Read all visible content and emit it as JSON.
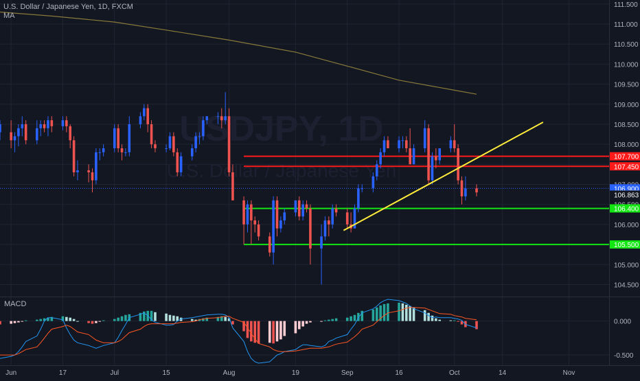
{
  "chart_data": {
    "type": "candlestick",
    "symbol_line": "U.S. Dollar / Japanese Yen, 1D, FXCM",
    "indicator_label": "MA",
    "watermark_symbol": "USDJPY, 1D",
    "watermark_name": "U.S. Dollar / Japanese Yen",
    "macd_label": "MACD",
    "colors": {
      "background": "#131722",
      "grid": "#1f2433",
      "up": "#2962ff",
      "down": "#ef5350",
      "ma": "#8a7a3a",
      "trendline": "#ffeb3b",
      "resistance": "#ff1a1a",
      "support": "#13e613",
      "axis_text": "#b2b5be",
      "macd_line": "#2196f3",
      "signal_line": "#ff5722",
      "hist_up_strong": "#26a69a",
      "hist_up_weak": "#b2dfdb",
      "hist_down_strong": "#ef5350",
      "hist_down_weak": "#ffcdd2"
    },
    "price_axis": {
      "ylim": [
        104.2,
        111.6
      ],
      "ticks": [
        "111.500",
        "111.000",
        "110.500",
        "110.000",
        "109.500",
        "109.000",
        "108.500",
        "108.000",
        "107.500",
        "107.000",
        "106.500",
        "106.000",
        "105.500",
        "105.000",
        "104.500"
      ]
    },
    "x_axis": {
      "ticks": [
        {
          "label": "Jun",
          "date": "2019-06-03"
        },
        {
          "label": "17",
          "date": "2019-06-17"
        },
        {
          "label": "Jul",
          "date": "2019-07-01"
        },
        {
          "label": "15",
          "date": "2019-07-15"
        },
        {
          "label": "Aug",
          "date": "2019-08-01"
        },
        {
          "label": "19",
          "date": "2019-08-19"
        },
        {
          "label": "Sep",
          "date": "2019-09-02"
        },
        {
          "label": "16",
          "date": "2019-09-16"
        },
        {
          "label": "Oct",
          "date": "2019-10-01"
        },
        {
          "label": "14",
          "date": "2019-10-14"
        },
        {
          "label": "Nov",
          "date": "2019-11-01"
        }
      ]
    },
    "candles": [
      {
        "d": "2019-05-31",
        "o": 108.3,
        "h": 108.6,
        "l": 108.1,
        "c": 108.5
      },
      {
        "d": "2019-06-03",
        "o": 108.3,
        "h": 108.6,
        "l": 107.9,
        "c": 108.1
      },
      {
        "d": "2019-06-04",
        "o": 108.1,
        "h": 108.3,
        "l": 107.8,
        "c": 108.2
      },
      {
        "d": "2019-06-05",
        "o": 108.2,
        "h": 108.5,
        "l": 107.95,
        "c": 108.4
      },
      {
        "d": "2019-06-06",
        "o": 108.4,
        "h": 108.7,
        "l": 108.2,
        "c": 108.5
      },
      {
        "d": "2019-06-07",
        "o": 108.5,
        "h": 108.6,
        "l": 108.0,
        "c": 108.1
      },
      {
        "d": "2019-06-10",
        "o": 108.1,
        "h": 108.6,
        "l": 108.0,
        "c": 108.4
      },
      {
        "d": "2019-06-11",
        "o": 108.4,
        "h": 108.6,
        "l": 108.2,
        "c": 108.5
      },
      {
        "d": "2019-06-12",
        "o": 108.5,
        "h": 108.6,
        "l": 108.3,
        "c": 108.4
      },
      {
        "d": "2019-06-13",
        "o": 108.4,
        "h": 108.7,
        "l": 108.2,
        "c": 108.6
      },
      {
        "d": "2019-06-14",
        "o": 108.6,
        "h": 108.7,
        "l": 108.3,
        "c": 108.45
      },
      {
        "d": "2019-06-17",
        "o": 108.45,
        "h": 108.7,
        "l": 108.35,
        "c": 108.6
      },
      {
        "d": "2019-06-18",
        "o": 108.6,
        "h": 108.7,
        "l": 108.3,
        "c": 108.45
      },
      {
        "d": "2019-06-19",
        "o": 108.45,
        "h": 108.5,
        "l": 107.9,
        "c": 108.1
      },
      {
        "d": "2019-06-20",
        "o": 108.1,
        "h": 108.2,
        "l": 107.2,
        "c": 107.3
      },
      {
        "d": "2019-06-21",
        "o": 107.3,
        "h": 107.6,
        "l": 107.1,
        "c": 107.35
      },
      {
        "d": "2019-06-24",
        "o": 107.35,
        "h": 107.5,
        "l": 107.05,
        "c": 107.3
      },
      {
        "d": "2019-06-25",
        "o": 107.3,
        "h": 107.4,
        "l": 106.8,
        "c": 107.1
      },
      {
        "d": "2019-06-26",
        "o": 107.1,
        "h": 107.9,
        "l": 107.0,
        "c": 107.8
      },
      {
        "d": "2019-06-27",
        "o": 107.8,
        "h": 107.9,
        "l": 107.6,
        "c": 107.8
      },
      {
        "d": "2019-06-28",
        "o": 107.8,
        "h": 108.0,
        "l": 107.7,
        "c": 107.9
      },
      {
        "d": "2019-07-01",
        "o": 107.9,
        "h": 108.5,
        "l": 107.8,
        "c": 108.4
      },
      {
        "d": "2019-07-02",
        "o": 108.4,
        "h": 108.5,
        "l": 107.8,
        "c": 107.9
      },
      {
        "d": "2019-07-03",
        "o": 107.9,
        "h": 108.0,
        "l": 107.6,
        "c": 107.8
      },
      {
        "d": "2019-07-04",
        "o": 107.8,
        "h": 107.9,
        "l": 107.7,
        "c": 107.8
      },
      {
        "d": "2019-07-05",
        "o": 107.8,
        "h": 108.7,
        "l": 107.7,
        "c": 108.5
      },
      {
        "d": "2019-07-08",
        "o": 108.5,
        "h": 108.8,
        "l": 108.4,
        "c": 108.7
      },
      {
        "d": "2019-07-09",
        "o": 108.7,
        "h": 109.0,
        "l": 108.6,
        "c": 108.9
      },
      {
        "d": "2019-07-10",
        "o": 108.9,
        "h": 109.0,
        "l": 108.3,
        "c": 108.5
      },
      {
        "d": "2019-07-11",
        "o": 108.5,
        "h": 108.6,
        "l": 107.9,
        "c": 108.0
      },
      {
        "d": "2019-07-12",
        "o": 108.0,
        "h": 108.1,
        "l": 107.8,
        "c": 107.9
      },
      {
        "d": "2019-07-15",
        "o": 107.9,
        "h": 108.0,
        "l": 107.8,
        "c": 107.9
      },
      {
        "d": "2019-07-16",
        "o": 107.9,
        "h": 108.3,
        "l": 107.85,
        "c": 108.2
      },
      {
        "d": "2019-07-17",
        "o": 108.2,
        "h": 108.3,
        "l": 107.7,
        "c": 107.8
      },
      {
        "d": "2019-07-18",
        "o": 107.8,
        "h": 107.9,
        "l": 107.2,
        "c": 107.3
      },
      {
        "d": "2019-07-19",
        "o": 107.3,
        "h": 107.8,
        "l": 107.2,
        "c": 107.7
      },
      {
        "d": "2019-07-22",
        "o": 107.7,
        "h": 108.0,
        "l": 107.6,
        "c": 107.9
      },
      {
        "d": "2019-07-23",
        "o": 107.9,
        "h": 108.3,
        "l": 107.8,
        "c": 108.2
      },
      {
        "d": "2019-07-24",
        "o": 108.2,
        "h": 108.3,
        "l": 108.0,
        "c": 108.2
      },
      {
        "d": "2019-07-25",
        "o": 108.2,
        "h": 108.7,
        "l": 108.1,
        "c": 108.6
      },
      {
        "d": "2019-07-26",
        "o": 108.6,
        "h": 108.7,
        "l": 108.5,
        "c": 108.7
      },
      {
        "d": "2019-07-29",
        "o": 108.7,
        "h": 108.8,
        "l": 108.5,
        "c": 108.7
      },
      {
        "d": "2019-07-30",
        "o": 108.7,
        "h": 108.9,
        "l": 108.4,
        "c": 108.6
      },
      {
        "d": "2019-07-31",
        "o": 108.6,
        "h": 109.3,
        "l": 108.5,
        "c": 108.7
      },
      {
        "d": "2019-08-01",
        "o": 108.7,
        "h": 108.9,
        "l": 107.2,
        "c": 107.3
      },
      {
        "d": "2019-08-02",
        "o": 107.3,
        "h": 107.5,
        "l": 106.6,
        "c": 106.6
      },
      {
        "d": "2019-08-05",
        "o": 106.6,
        "h": 106.7,
        "l": 105.5,
        "c": 106.0
      },
      {
        "d": "2019-08-06",
        "o": 106.0,
        "h": 106.6,
        "l": 105.8,
        "c": 106.5
      },
      {
        "d": "2019-08-07",
        "o": 106.5,
        "h": 106.6,
        "l": 105.5,
        "c": 106.1
      },
      {
        "d": "2019-08-08",
        "o": 106.1,
        "h": 106.2,
        "l": 105.8,
        "c": 106.0
      },
      {
        "d": "2019-08-09",
        "o": 106.0,
        "h": 106.1,
        "l": 105.6,
        "c": 105.7
      },
      {
        "d": "2019-08-12",
        "o": 105.7,
        "h": 105.8,
        "l": 105.2,
        "c": 105.3
      },
      {
        "d": "2019-08-13",
        "o": 105.3,
        "h": 106.7,
        "l": 105.0,
        "c": 106.6
      },
      {
        "d": "2019-08-14",
        "o": 106.6,
        "h": 106.7,
        "l": 105.7,
        "c": 105.9
      },
      {
        "d": "2019-08-15",
        "o": 105.9,
        "h": 106.2,
        "l": 105.8,
        "c": 106.1
      },
      {
        "d": "2019-08-16",
        "o": 106.1,
        "h": 106.4,
        "l": 106.0,
        "c": 106.3
      },
      {
        "d": "2019-08-19",
        "o": 106.3,
        "h": 106.6,
        "l": 106.2,
        "c": 106.6
      },
      {
        "d": "2019-08-20",
        "o": 106.6,
        "h": 106.7,
        "l": 106.1,
        "c": 106.2
      },
      {
        "d": "2019-08-21",
        "o": 106.2,
        "h": 106.6,
        "l": 106.1,
        "c": 106.5
      },
      {
        "d": "2019-08-22",
        "o": 106.5,
        "h": 106.6,
        "l": 106.3,
        "c": 106.4
      },
      {
        "d": "2019-08-23",
        "o": 106.4,
        "h": 106.5,
        "l": 105.0,
        "c": 105.4
      },
      {
        "d": "2019-08-26",
        "o": 105.4,
        "h": 106.0,
        "l": 104.5,
        "c": 105.7
      },
      {
        "d": "2019-08-27",
        "o": 105.7,
        "h": 106.2,
        "l": 105.6,
        "c": 106.1
      },
      {
        "d": "2019-08-28",
        "o": 106.1,
        "h": 106.2,
        "l": 105.7,
        "c": 106.0
      },
      {
        "d": "2019-08-29",
        "o": 106.0,
        "h": 106.5,
        "l": 105.9,
        "c": 106.4
      },
      {
        "d": "2019-08-30",
        "o": 106.4,
        "h": 106.5,
        "l": 106.2,
        "c": 106.3
      },
      {
        "d": "2019-09-02",
        "o": 106.3,
        "h": 106.4,
        "l": 105.9,
        "c": 106.0
      },
      {
        "d": "2019-09-03",
        "o": 106.0,
        "h": 106.3,
        "l": 105.8,
        "c": 105.9
      },
      {
        "d": "2019-09-04",
        "o": 105.9,
        "h": 106.5,
        "l": 105.9,
        "c": 106.4
      },
      {
        "d": "2019-09-05",
        "o": 106.4,
        "h": 107.0,
        "l": 106.3,
        "c": 106.9
      },
      {
        "d": "2019-09-06",
        "o": 106.9,
        "h": 107.0,
        "l": 106.8,
        "c": 106.9
      },
      {
        "d": "2019-09-09",
        "o": 106.9,
        "h": 107.3,
        "l": 106.8,
        "c": 107.2
      },
      {
        "d": "2019-09-10",
        "o": 107.2,
        "h": 107.6,
        "l": 107.1,
        "c": 107.5
      },
      {
        "d": "2019-09-11",
        "o": 107.5,
        "h": 107.9,
        "l": 107.4,
        "c": 107.8
      },
      {
        "d": "2019-09-12",
        "o": 107.8,
        "h": 108.2,
        "l": 107.7,
        "c": 108.1
      },
      {
        "d": "2019-09-13",
        "o": 108.1,
        "h": 108.2,
        "l": 107.9,
        "c": 107.9
      },
      {
        "d": "2019-09-16",
        "o": 107.9,
        "h": 108.2,
        "l": 107.8,
        "c": 108.1
      },
      {
        "d": "2019-09-17",
        "o": 108.1,
        "h": 108.2,
        "l": 107.9,
        "c": 108.1
      },
      {
        "d": "2019-09-18",
        "o": 108.1,
        "h": 108.2,
        "l": 107.8,
        "c": 107.9
      },
      {
        "d": "2019-09-19",
        "o": 107.9,
        "h": 108.4,
        "l": 107.5,
        "c": 107.5
      },
      {
        "d": "2019-09-20",
        "o": 107.5,
        "h": 108.0,
        "l": 107.5,
        "c": 107.9
      },
      {
        "d": "2019-09-23",
        "o": 107.9,
        "h": 108.6,
        "l": 107.8,
        "c": 108.4
      },
      {
        "d": "2019-09-24",
        "o": 108.4,
        "h": 108.5,
        "l": 107.0,
        "c": 107.1
      },
      {
        "d": "2019-09-25",
        "o": 107.1,
        "h": 107.8,
        "l": 107.0,
        "c": 107.7
      },
      {
        "d": "2019-09-26",
        "o": 107.7,
        "h": 107.9,
        "l": 107.4,
        "c": 107.6
      },
      {
        "d": "2019-09-27",
        "o": 107.6,
        "h": 107.9,
        "l": 107.5,
        "c": 107.9
      },
      {
        "d": "2019-09-30",
        "o": 107.9,
        "h": 108.2,
        "l": 107.8,
        "c": 108.1
      },
      {
        "d": "2019-10-01",
        "o": 108.1,
        "h": 108.5,
        "l": 107.8,
        "c": 107.9
      },
      {
        "d": "2019-10-02",
        "o": 107.9,
        "h": 108.0,
        "l": 107.0,
        "c": 107.1
      },
      {
        "d": "2019-10-03",
        "o": 107.1,
        "h": 107.2,
        "l": 106.5,
        "c": 106.7
      },
      {
        "d": "2019-10-04",
        "o": 106.7,
        "h": 107.2,
        "l": 106.6,
        "c": 106.9
      },
      {
        "d": "2019-10-07",
        "o": 106.9,
        "h": 107.0,
        "l": 106.7,
        "c": 106.8
      }
    ],
    "ma": [
      {
        "d": "2019-05-31",
        "v": 111.3
      },
      {
        "d": "2019-06-14",
        "v": 111.2
      },
      {
        "d": "2019-07-01",
        "v": 111.05
      },
      {
        "d": "2019-07-15",
        "v": 110.85
      },
      {
        "d": "2019-08-01",
        "v": 110.6
      },
      {
        "d": "2019-08-19",
        "v": 110.3
      },
      {
        "d": "2019-09-02",
        "v": 109.95
      },
      {
        "d": "2019-09-16",
        "v": 109.6
      },
      {
        "d": "2019-10-01",
        "v": 109.35
      },
      {
        "d": "2019-10-07",
        "v": 109.25
      }
    ],
    "horizontal_levels": [
      {
        "price": 107.7,
        "label": "107.700",
        "color": "#ff1a1a",
        "from": "2019-08-05"
      },
      {
        "price": 107.45,
        "label": "107.450",
        "color": "#ff1a1a",
        "from": "2019-08-05"
      },
      {
        "price": 106.4,
        "label": "106.400",
        "color": "#13e613",
        "from": "2019-08-05"
      },
      {
        "price": 105.5,
        "label": "105.500",
        "color": "#13e613",
        "from": "2019-08-05"
      }
    ],
    "price_labels": [
      {
        "price": 106.9,
        "label": "106.900",
        "color": "#2962ff"
      },
      {
        "price": 106.863,
        "label": "106.863",
        "color": "#131722"
      }
    ],
    "trendline": {
      "start": {
        "d": "2019-09-01",
        "p": 105.85
      },
      "end": {
        "d": "2019-10-25",
        "p": 108.55
      }
    },
    "macd": {
      "ylim": [
        -0.65,
        0.35
      ],
      "ticks": [
        "0.000",
        "-0.500"
      ],
      "histogram": [
        -0.05,
        -0.04,
        -0.03,
        -0.02,
        -0.01,
        0.01,
        0.02,
        0.03,
        0.04,
        0.05,
        0.06,
        0.07,
        0.06,
        0.05,
        0.03,
        0.0,
        -0.03,
        -0.04,
        -0.03,
        -0.01,
        0.01,
        0.03,
        0.05,
        0.07,
        0.09,
        0.1,
        0.12,
        0.14,
        0.15,
        0.15,
        0.13,
        0.11,
        0.09,
        0.08,
        0.07,
        0.05,
        0.03,
        0.02,
        0.03,
        0.04,
        0.05,
        0.06,
        0.07,
        0.06,
        0.04,
        -0.05,
        -0.15,
        -0.25,
        -0.3,
        -0.32,
        -0.33,
        -0.32,
        -0.33,
        -0.3,
        -0.27,
        -0.22,
        -0.18,
        -0.12,
        -0.08,
        -0.04,
        -0.02,
        -0.01,
        0.01,
        0.02,
        0.03,
        0.04,
        0.05,
        0.07,
        0.09,
        0.12,
        0.15,
        0.17,
        0.2,
        0.23,
        0.25,
        0.26,
        0.27,
        0.26,
        0.24,
        0.22,
        0.2,
        0.16,
        0.12,
        0.08,
        0.04,
        0.02,
        0.01,
        0.01,
        -0.01,
        -0.05,
        -0.09,
        -0.12,
        -0.13
      ],
      "macd_line": [
        -0.55,
        -0.52,
        -0.5,
        -0.45,
        -0.38,
        -0.3,
        -0.22,
        -0.12,
        0.0,
        0.05,
        0.05,
        0.02,
        -0.1,
        -0.2,
        -0.28,
        -0.32,
        -0.36,
        -0.38,
        -0.4,
        -0.38,
        -0.36,
        -0.32,
        -0.24,
        -0.14,
        -0.05,
        0.05,
        0.1,
        0.12,
        0.08,
        0.02,
        -0.02,
        -0.06,
        -0.06,
        -0.05,
        0.0,
        0.03,
        0.05,
        0.06,
        0.07,
        0.08,
        0.09,
        0.1,
        0.1,
        0.09,
        0.05,
        -0.1,
        -0.3,
        -0.45,
        -0.55,
        -0.6,
        -0.62,
        -0.6,
        -0.55,
        -0.5,
        -0.48,
        -0.45,
        -0.42,
        -0.38,
        -0.35,
        -0.35,
        -0.36,
        -0.38,
        -0.36,
        -0.3,
        -0.28,
        -0.25,
        -0.2,
        -0.12,
        -0.05,
        0.05,
        0.12,
        0.18,
        0.22,
        0.27,
        0.3,
        0.32,
        0.3,
        0.28,
        0.26,
        0.22,
        0.18,
        0.12,
        0.08,
        0.05,
        0.06,
        0.05,
        0.05,
        0.04,
        0.03,
        0.01,
        -0.05,
        -0.1,
        -0.12
      ],
      "signal_line": [
        -0.5,
        -0.5,
        -0.5,
        -0.48,
        -0.45,
        -0.42,
        -0.38,
        -0.32,
        -0.25,
        -0.18,
        -0.12,
        -0.08,
        -0.06,
        -0.08,
        -0.12,
        -0.16,
        -0.2,
        -0.24,
        -0.28,
        -0.3,
        -0.32,
        -0.32,
        -0.3,
        -0.27,
        -0.22,
        -0.17,
        -0.12,
        -0.08,
        -0.05,
        -0.04,
        -0.04,
        -0.04,
        -0.04,
        -0.04,
        -0.03,
        -0.02,
        -0.01,
        0.0,
        0.02,
        0.03,
        0.04,
        0.05,
        0.06,
        0.07,
        0.07,
        0.04,
        -0.02,
        -0.1,
        -0.18,
        -0.26,
        -0.33,
        -0.38,
        -0.42,
        -0.44,
        -0.45,
        -0.45,
        -0.44,
        -0.43,
        -0.42,
        -0.41,
        -0.4,
        -0.4,
        -0.39,
        -0.38,
        -0.36,
        -0.34,
        -0.31,
        -0.27,
        -0.23,
        -0.18,
        -0.12,
        -0.06,
        -0.01,
        0.04,
        0.08,
        0.12,
        0.15,
        0.17,
        0.19,
        0.2,
        0.2,
        0.19,
        0.17,
        0.15,
        0.13,
        0.11,
        0.1,
        0.08,
        0.07,
        0.06,
        0.04,
        0.02,
        0.0
      ]
    }
  }
}
